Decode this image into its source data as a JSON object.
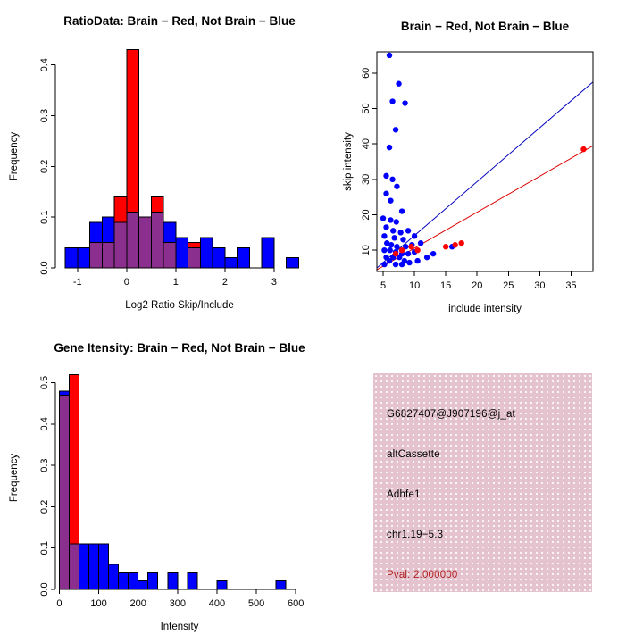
{
  "chart_data": [
    {
      "id": "ratio-histogram",
      "type": "bar",
      "subtype": "overlaid-histogram",
      "title": "RatioData: Brain − Red, Not Brain − Blue",
      "xlabel": "Log2 Ratio Skip/Include",
      "ylabel": "Frequency",
      "xlim": [
        -1.45,
        3.6
      ],
      "ylim": [
        0,
        0.44
      ],
      "xticks": [
        -1,
        0,
        1,
        2,
        3
      ],
      "xtick_labels": [
        "-1",
        "0",
        "1",
        "2",
        "3"
      ],
      "yticks": [
        0,
        0.1,
        0.2,
        0.3,
        0.4
      ],
      "ytick_labels": [
        "0.0",
        "0.1",
        "0.2",
        "0.3",
        "0.4"
      ],
      "bin_width": 0.25,
      "overlap_color": "#8B2F8F",
      "grid": false,
      "series": [
        {
          "name": "Brain",
          "color": "#FF0000",
          "bin_start": -0.75,
          "values": [
            0.05,
            0.05,
            0.14,
            0.43,
            0.1,
            0.14,
            0.05,
            0,
            0.05
          ]
        },
        {
          "name": "Not Brain",
          "color": "#0000FF",
          "bin_start": -1.25,
          "values": [
            0.04,
            0.04,
            0.09,
            0.1,
            0.09,
            0.11,
            0.1,
            0.11,
            0.09,
            0.06,
            0.04,
            0.06,
            0.04,
            0.02,
            0.04,
            0,
            0.06,
            0,
            0.02
          ]
        }
      ]
    },
    {
      "id": "intensity-scatter",
      "type": "scatter",
      "title": "Brain − Red, Not Brain − Blue",
      "xlabel": "include intensity",
      "ylabel": "skip intensity",
      "xlim": [
        4,
        38.5
      ],
      "ylim": [
        4,
        66
      ],
      "xticks": [
        5,
        10,
        15,
        20,
        25,
        30,
        35
      ],
      "xtick_labels": [
        "5",
        "10",
        "15",
        "20",
        "25",
        "30",
        "35"
      ],
      "yticks": [
        10,
        20,
        30,
        40,
        50,
        60
      ],
      "ytick_labels": [
        "10",
        "20",
        "30",
        "40",
        "50",
        "60"
      ],
      "box": true,
      "grid": false,
      "point_radius": 3.2,
      "point_series": [
        {
          "name": "Not Brain",
          "color": "#0000FF",
          "points": [
            [
              6,
              65
            ],
            [
              7.5,
              57
            ],
            [
              6.5,
              52
            ],
            [
              8.5,
              51.5
            ],
            [
              7,
              44
            ],
            [
              6,
              39
            ],
            [
              5.5,
              31
            ],
            [
              6.5,
              30
            ],
            [
              7.2,
              28
            ],
            [
              5.5,
              26
            ],
            [
              6.2,
              24
            ],
            [
              8,
              21
            ],
            [
              5,
              19
            ],
            [
              6.2,
              18.5
            ],
            [
              7.1,
              18
            ],
            [
              5.5,
              16.5
            ],
            [
              6.6,
              15.5
            ],
            [
              7.8,
              15
            ],
            [
              9,
              15.5
            ],
            [
              5.2,
              14
            ],
            [
              6.8,
              13.5
            ],
            [
              8.2,
              13
            ],
            [
              10,
              14
            ],
            [
              5.6,
              12
            ],
            [
              6.3,
              11.5
            ],
            [
              7.2,
              11
            ],
            [
              8.6,
              11
            ],
            [
              9.6,
              11.5
            ],
            [
              11,
              12
            ],
            [
              5.2,
              10
            ],
            [
              6.1,
              10
            ],
            [
              7,
              9.5
            ],
            [
              8,
              9
            ],
            [
              9,
              9
            ],
            [
              10,
              9.5
            ],
            [
              5.5,
              8
            ],
            [
              6.6,
              8
            ],
            [
              7.6,
              8
            ],
            [
              8.4,
              7
            ],
            [
              6,
              7
            ],
            [
              5.2,
              6
            ],
            [
              7,
              6
            ],
            [
              8,
              6
            ],
            [
              9.2,
              6.5
            ],
            [
              10.5,
              7
            ],
            [
              12,
              8
            ],
            [
              13,
              9
            ],
            [
              16,
              11
            ]
          ]
        },
        {
          "name": "Brain",
          "color": "#FF0000",
          "points": [
            [
              7,
              9
            ],
            [
              8,
              10
            ],
            [
              9.5,
              11
            ],
            [
              10.5,
              10
            ],
            [
              15,
              11
            ],
            [
              16.5,
              11.5
            ],
            [
              17.5,
              12
            ],
            [
              37,
              38.5
            ]
          ]
        }
      ],
      "lines": [
        {
          "name": "not-brain-fit",
          "color": "#0000BB",
          "x": [
            4,
            38.5
          ],
          "y": [
            5,
            57.5
          ]
        },
        {
          "name": "brain-fit",
          "color": "#DD0000",
          "x": [
            4,
            38.5
          ],
          "y": [
            4.5,
            39.5
          ]
        }
      ]
    },
    {
      "id": "gene-intensity-histogram",
      "type": "bar",
      "subtype": "overlaid-histogram",
      "title": "Gene Itensity: Brain − Red, Not Brain − Blue",
      "xlabel": "Intensity",
      "ylabel": "Frequency",
      "xlim": [
        -10,
        620
      ],
      "ylim": [
        0,
        0.54
      ],
      "xticks": [
        0,
        100,
        200,
        300,
        400,
        500,
        600
      ],
      "xtick_labels": [
        "0",
        "100",
        "200",
        "300",
        "400",
        "500",
        "600"
      ],
      "yticks": [
        0,
        0.1,
        0.2,
        0.3,
        0.4,
        0.5
      ],
      "ytick_labels": [
        "0.0",
        "0.1",
        "0.2",
        "0.3",
        "0.4",
        "0.5"
      ],
      "bin_width": 25,
      "overlap_color": "#8B2F8F",
      "grid": false,
      "series": [
        {
          "name": "Brain",
          "color": "#FF0000",
          "bin_start": 0,
          "values": [
            0.47,
            0.52
          ]
        },
        {
          "name": "Not Brain",
          "color": "#0000FF",
          "bin_start": 0,
          "values": [
            0.48,
            0.11,
            0.11,
            0.11,
            0.11,
            0.06,
            0.04,
            0.04,
            0.02,
            0.04,
            0,
            0.04,
            0,
            0.04,
            0,
            0,
            0.02,
            0,
            0,
            0,
            0,
            0,
            0.02
          ]
        }
      ]
    }
  ],
  "info_box": {
    "bg_color": "#E4C3CE",
    "lines": [
      {
        "text": "G6827407@J907196@j_at",
        "color": "#000000"
      },
      {
        "text": "altCassette",
        "color": "#000000"
      },
      {
        "text": "Adhfe1",
        "color": "#000000"
      },
      {
        "text": "chr1.19−5.3",
        "color": "#000000"
      },
      {
        "text": "Pval: 2.000000",
        "color": "#B22222"
      }
    ]
  }
}
